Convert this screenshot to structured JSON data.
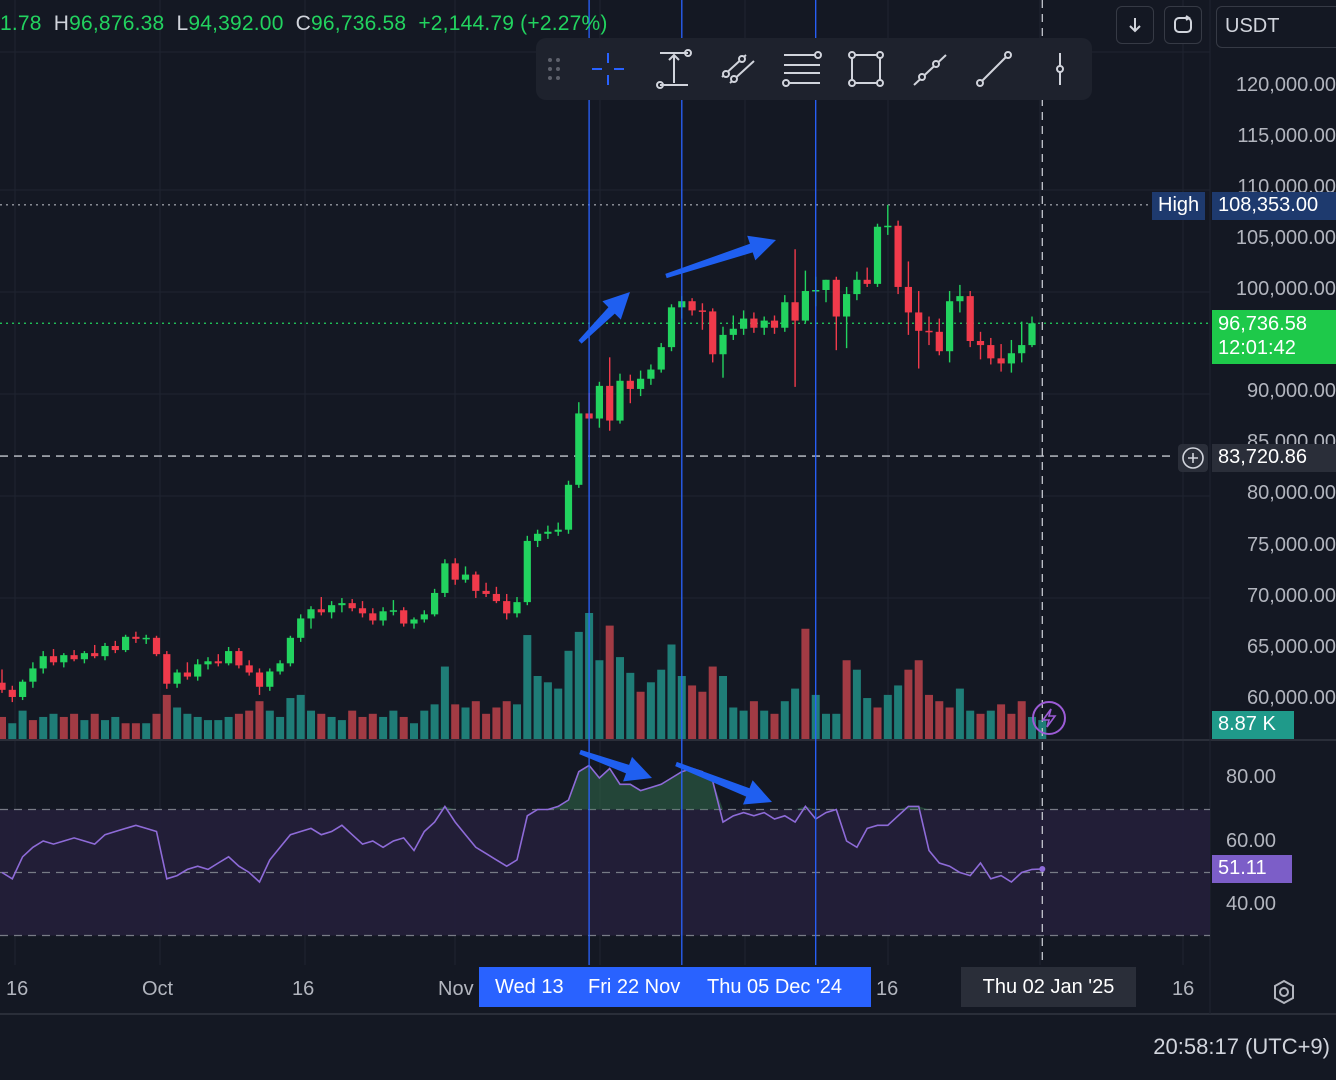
{
  "ohlc": {
    "open_partial": "1.78",
    "high_label": "H",
    "high": "96,876.38",
    "low_label": "L",
    "low": "94,392.00",
    "close_label": "C",
    "close": "96,736.58",
    "change": "+2,144.79 (+2.27%)"
  },
  "top_controls": {
    "download_icon": "arrow-down-icon",
    "compare_icon": "swap-icon",
    "currency": "USDT"
  },
  "drawing_toolbar": {
    "items": [
      "drag-handle-icon",
      "crosshair-icon",
      "date-range-icon",
      "trend-channel-icon",
      "fib-retracement-icon",
      "rectangle-icon",
      "ray-icon",
      "trend-line-icon",
      "vertical-line-icon"
    ]
  },
  "price_axis": {
    "ticks": [
      "120,000.00",
      "115,000.00",
      "110,000.00",
      "105,000.00",
      "100,000.00",
      "90,000.00",
      "85,000.00",
      "80,000.00",
      "75,000.00",
      "70,000.00",
      "65,000.00",
      "60,000.00"
    ],
    "high_tag_label": "High",
    "high_tag_value": "108,353.00",
    "last_price": "96,736.58",
    "countdown": "12:01:42",
    "crosshair_price": "83,720.86",
    "volume_value": "8.87 K"
  },
  "rsi_axis": {
    "ticks": [
      "80.00",
      "60.00",
      "40.00"
    ],
    "value": "51.11"
  },
  "time_axis": {
    "labels": [
      "16",
      "Oct",
      "16",
      "Nov",
      "16",
      "16"
    ],
    "selected_range": [
      "Wed 13",
      "Fri 22 Nov",
      "Thu 05 Dec '24"
    ],
    "crosshair_date": "Thu 02 Jan '25",
    "settings_icon": "settings-icon"
  },
  "clock": "20:58:17 (UTC+9)",
  "colors": {
    "up": "#22d35f",
    "down": "#f03a4b",
    "vol_up": "#1f7d77",
    "vol_down": "#a23b44",
    "rsi_line": "#8e6bd8",
    "marker": "#2962ff",
    "arrow": "#1f5ff0",
    "bg": "#141823"
  },
  "chart_data": {
    "type": "candlestick",
    "title": "",
    "price_range": [
      58000,
      124000
    ],
    "rsi_range": [
      25,
      95
    ],
    "rsi_bands": [
      70,
      50,
      30
    ],
    "candles": [
      [
        61500,
        62800,
        60500,
        60800
      ],
      [
        60800,
        61200,
        59600,
        60100
      ],
      [
        60100,
        61800,
        59800,
        61600
      ],
      [
        61600,
        63500,
        61000,
        62900
      ],
      [
        62900,
        64600,
        62400,
        64100
      ],
      [
        64100,
        64800,
        63200,
        63500
      ],
      [
        63500,
        64400,
        63000,
        64200
      ],
      [
        64200,
        64700,
        63600,
        63800
      ],
      [
        63800,
        64600,
        63400,
        64400
      ],
      [
        64400,
        65200,
        63900,
        64100
      ],
      [
        64100,
        65400,
        63700,
        65100
      ],
      [
        65100,
        65600,
        64400,
        64700
      ],
      [
        64700,
        66200,
        64500,
        66000
      ],
      [
        66000,
        66500,
        65400,
        65800
      ],
      [
        65800,
        66200,
        65300,
        65900
      ],
      [
        65900,
        66100,
        64100,
        64300
      ],
      [
        64300,
        64600,
        60900,
        61400
      ],
      [
        61400,
        62800,
        61000,
        62500
      ],
      [
        62500,
        63500,
        61800,
        62100
      ],
      [
        62100,
        63800,
        61700,
        63300
      ],
      [
        63300,
        64000,
        62800,
        63600
      ],
      [
        63600,
        64300,
        63100,
        63400
      ],
      [
        63400,
        65000,
        63200,
        64600
      ],
      [
        64600,
        64900,
        62900,
        63200
      ],
      [
        63200,
        63700,
        62200,
        62500
      ],
      [
        62500,
        62900,
        60300,
        61100
      ],
      [
        61100,
        62900,
        60700,
        62600
      ],
      [
        62600,
        63700,
        62300,
        63400
      ],
      [
        63400,
        66100,
        63100,
        65900
      ],
      [
        65900,
        68200,
        65500,
        67800
      ],
      [
        67800,
        69000,
        66800,
        68700
      ],
      [
        68700,
        69900,
        68100,
        68400
      ],
      [
        68400,
        69500,
        67800,
        69100
      ],
      [
        69100,
        69800,
        68400,
        69300
      ],
      [
        69300,
        69700,
        68500,
        68800
      ],
      [
        68800,
        69500,
        67900,
        68300
      ],
      [
        68300,
        68800,
        67200,
        67600
      ],
      [
        67600,
        68900,
        67100,
        68500
      ],
      [
        68500,
        69600,
        68100,
        68600
      ],
      [
        68600,
        68900,
        67000,
        67300
      ],
      [
        67300,
        67900,
        66800,
        67700
      ],
      [
        67700,
        68600,
        67400,
        68200
      ],
      [
        68200,
        70700,
        68000,
        70300
      ],
      [
        70300,
        73600,
        69900,
        73200
      ],
      [
        73200,
        73700,
        71100,
        71600
      ],
      [
        71600,
        72900,
        71300,
        72100
      ],
      [
        72100,
        72400,
        69800,
        70500
      ],
      [
        70500,
        71300,
        69900,
        70200
      ],
      [
        70200,
        70900,
        69300,
        69500
      ],
      [
        69500,
        70200,
        67700,
        68300
      ],
      [
        68300,
        69900,
        67900,
        69400
      ],
      [
        69400,
        75900,
        69100,
        75400
      ],
      [
        75400,
        76500,
        74800,
        76100
      ],
      [
        76100,
        76900,
        75600,
        76300
      ],
      [
        76300,
        77200,
        75900,
        76500
      ],
      [
        76500,
        81300,
        76100,
        80900
      ],
      [
        80900,
        89000,
        80600,
        87900
      ],
      [
        87900,
        89900,
        85300,
        87400
      ],
      [
        87400,
        91000,
        86500,
        90600
      ],
      [
        90600,
        93400,
        86200,
        87200
      ],
      [
        87200,
        91800,
        86900,
        91100
      ],
      [
        91100,
        91700,
        88900,
        90300
      ],
      [
        90300,
        92100,
        89600,
        91300
      ],
      [
        91300,
        92700,
        90700,
        92200
      ],
      [
        92200,
        94800,
        91900,
        94400
      ],
      [
        94400,
        98600,
        94000,
        98300
      ],
      [
        98300,
        99400,
        97200,
        98900
      ],
      [
        98900,
        99200,
        97500,
        98000
      ],
      [
        98000,
        98700,
        96100,
        97900
      ],
      [
        97900,
        98200,
        92900,
        93700
      ],
      [
        93700,
        96400,
        91400,
        95600
      ],
      [
        95600,
        97500,
        95100,
        96200
      ],
      [
        96200,
        98000,
        95600,
        97200
      ],
      [
        97200,
        97800,
        95800,
        96300
      ],
      [
        96300,
        97400,
        95600,
        97000
      ],
      [
        97000,
        97500,
        95700,
        96300
      ],
      [
        96300,
        99500,
        95900,
        98800
      ],
      [
        98800,
        104000,
        90500,
        97000
      ],
      [
        97000,
        101900,
        96800,
        99900
      ],
      [
        99900,
        101300,
        98400,
        100000
      ],
      [
        100000,
        101000,
        98800,
        101000
      ],
      [
        101000,
        101300,
        94100,
        97400
      ],
      [
        97400,
        100300,
        94300,
        99600
      ],
      [
        99600,
        101800,
        99000,
        101000
      ],
      [
        101000,
        102200,
        100300,
        100600
      ],
      [
        100600,
        106500,
        100300,
        106200
      ],
      [
        106200,
        108353,
        105400,
        106300
      ],
      [
        106300,
        106800,
        99600,
        100300
      ],
      [
        100300,
        102800,
        95600,
        97800
      ],
      [
        97800,
        99900,
        92300,
        96000
      ],
      [
        96000,
        97400,
        94600,
        95900
      ],
      [
        95900,
        97200,
        93600,
        94000
      ],
      [
        94000,
        99900,
        92900,
        98900
      ],
      [
        98900,
        100500,
        97800,
        99400
      ],
      [
        99400,
        99900,
        94400,
        95000
      ],
      [
        95000,
        95900,
        93200,
        94600
      ],
      [
        94600,
        95300,
        92700,
        93300
      ],
      [
        93300,
        94700,
        92000,
        92800
      ],
      [
        92800,
        95100,
        91900,
        93800
      ],
      [
        93800,
        96900,
        92900,
        94600
      ],
      [
        94600,
        97400,
        94400,
        96736.58
      ]
    ],
    "volume": [
      [
        7,
        "d"
      ],
      [
        5,
        "u"
      ],
      [
        9,
        "u"
      ],
      [
        6,
        "d"
      ],
      [
        7,
        "u"
      ],
      [
        8,
        "u"
      ],
      [
        7,
        "d"
      ],
      [
        8,
        "d"
      ],
      [
        6,
        "u"
      ],
      [
        8,
        "d"
      ],
      [
        6,
        "u"
      ],
      [
        7,
        "u"
      ],
      [
        5,
        "d"
      ],
      [
        5,
        "d"
      ],
      [
        5,
        "u"
      ],
      [
        8,
        "d"
      ],
      [
        14,
        "d"
      ],
      [
        10,
        "u"
      ],
      [
        8,
        "u"
      ],
      [
        7,
        "u"
      ],
      [
        6,
        "u"
      ],
      [
        6,
        "u"
      ],
      [
        7,
        "u"
      ],
      [
        8,
        "d"
      ],
      [
        9,
        "d"
      ],
      [
        12,
        "d"
      ],
      [
        9,
        "u"
      ],
      [
        7,
        "u"
      ],
      [
        13,
        "u"
      ],
      [
        14,
        "u"
      ],
      [
        9,
        "u"
      ],
      [
        8,
        "d"
      ],
      [
        7,
        "u"
      ],
      [
        6,
        "u"
      ],
      [
        9,
        "d"
      ],
      [
        7,
        "d"
      ],
      [
        8,
        "d"
      ],
      [
        7,
        "u"
      ],
      [
        9,
        "u"
      ],
      [
        7,
        "d"
      ],
      [
        5,
        "u"
      ],
      [
        9,
        "u"
      ],
      [
        11,
        "u"
      ],
      [
        23,
        "u"
      ],
      [
        11,
        "d"
      ],
      [
        10,
        "u"
      ],
      [
        12,
        "d"
      ],
      [
        8,
        "d"
      ],
      [
        10,
        "d"
      ],
      [
        12,
        "d"
      ],
      [
        11,
        "u"
      ],
      [
        33,
        "u"
      ],
      [
        20,
        "u"
      ],
      [
        18,
        "u"
      ],
      [
        16,
        "u"
      ],
      [
        28,
        "u"
      ],
      [
        34,
        "u"
      ],
      [
        40,
        "u"
      ],
      [
        25,
        "u"
      ],
      [
        36,
        "d"
      ],
      [
        26,
        "u"
      ],
      [
        21,
        "u"
      ],
      [
        15,
        "d"
      ],
      [
        18,
        "u"
      ],
      [
        22,
        "u"
      ],
      [
        30,
        "u"
      ],
      [
        20,
        "u"
      ],
      [
        17,
        "d"
      ],
      [
        15,
        "d"
      ],
      [
        23,
        "d"
      ],
      [
        20,
        "u"
      ],
      [
        10,
        "u"
      ],
      [
        9,
        "u"
      ],
      [
        12,
        "d"
      ],
      [
        9,
        "u"
      ],
      [
        8,
        "d"
      ],
      [
        12,
        "u"
      ],
      [
        16,
        "u"
      ],
      [
        35,
        "d"
      ],
      [
        14,
        "u"
      ],
      [
        8,
        "u"
      ],
      [
        8,
        "u"
      ],
      [
        25,
        "d"
      ],
      [
        22,
        "u"
      ],
      [
        13,
        "u"
      ],
      [
        10,
        "d"
      ],
      [
        14,
        "u"
      ],
      [
        17,
        "u"
      ],
      [
        22,
        "d"
      ],
      [
        25,
        "d"
      ],
      [
        14,
        "d"
      ],
      [
        12,
        "d"
      ],
      [
        10,
        "d"
      ],
      [
        16,
        "u"
      ],
      [
        9,
        "u"
      ],
      [
        8,
        "d"
      ],
      [
        9,
        "u"
      ],
      [
        11,
        "d"
      ],
      [
        8,
        "d"
      ],
      [
        12,
        "d"
      ],
      [
        7,
        "u"
      ],
      [
        6,
        "u"
      ]
    ],
    "rsi": [
      50,
      48,
      55,
      58,
      60,
      59,
      60,
      61,
      60,
      59,
      62,
      63,
      64,
      65,
      64,
      63,
      48,
      49,
      51,
      52,
      51,
      53,
      55,
      52,
      50,
      47,
      54,
      58,
      62,
      63,
      64,
      62,
      63,
      65,
      62,
      59,
      60,
      58,
      60,
      61,
      57,
      63,
      66,
      71,
      66,
      62,
      58,
      56,
      54,
      52,
      54,
      68,
      70,
      70,
      71,
      73,
      82,
      84,
      80,
      83,
      78,
      78,
      76,
      77,
      78,
      80,
      82,
      83,
      82,
      79,
      66,
      68,
      69,
      68,
      69,
      67,
      68,
      66,
      71,
      67,
      69,
      70,
      60,
      58,
      64,
      65,
      65,
      68,
      71,
      71,
      57,
      53,
      52,
      50,
      49,
      53,
      48,
      49,
      47,
      50,
      51,
      51.11
    ],
    "markers": [
      57,
      66,
      79
    ],
    "crosshair_index": 101
  }
}
